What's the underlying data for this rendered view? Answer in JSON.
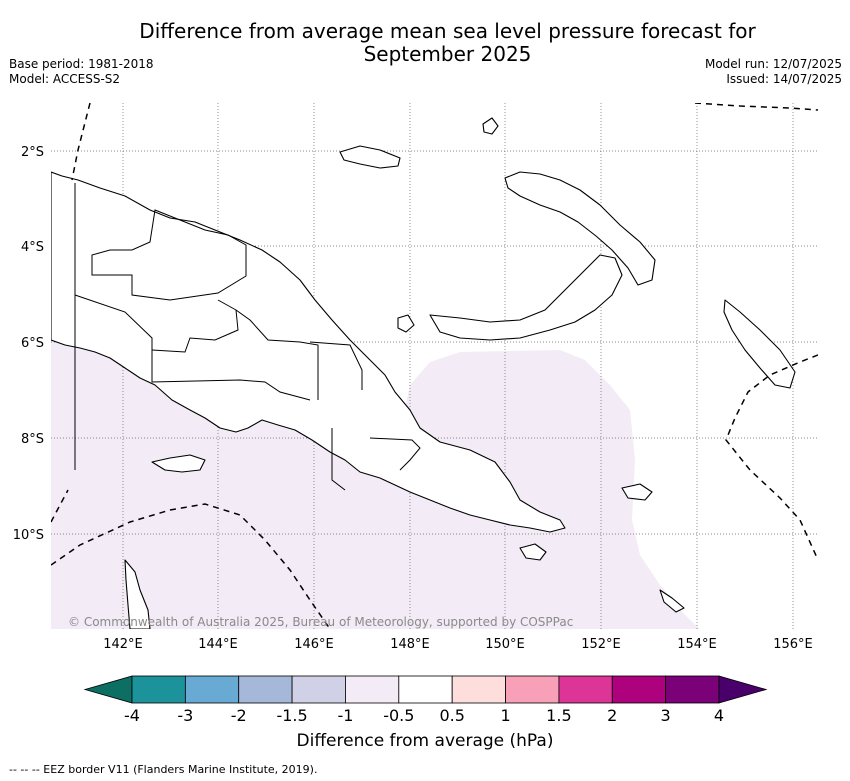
{
  "header": {
    "title_line1": "Difference from average mean sea level pressure forecast for",
    "title_line2": "September 2025",
    "base_period": "Base period: 1981-2018",
    "model": "Model: ACCESS-S2",
    "model_run": "Model run: 12/07/2025",
    "issued": "Issued: 14/07/2025"
  },
  "map": {
    "lon_ticks": [
      "142°E",
      "144°E",
      "146°E",
      "148°E",
      "150°E",
      "152°E",
      "154°E",
      "156°E"
    ],
    "lat_ticks": [
      "2°S",
      "4°S",
      "6°S",
      "8°S",
      "10°S"
    ],
    "copyright": "© Commonwealth of Australia 2025, Bureau of Meteorology, supported by COSPPac",
    "anomaly_class": "-1 to -0.5",
    "anomaly_color": "#f3ebf5"
  },
  "colorbar": {
    "labels": [
      "-4",
      "-3",
      "-2",
      "-1.5",
      "-1",
      "-0.5",
      "0.5",
      "1",
      "1.5",
      "2",
      "3",
      "4"
    ],
    "colors": [
      "#0d6e63",
      "#1c929b",
      "#68aad3",
      "#a6b8da",
      "#d0d0e6",
      "#f3ebf5",
      "#ffffff",
      "#fedddd",
      "#f8a0b8",
      "#dd3497",
      "#ae017e",
      "#7a0177",
      "#49006a"
    ],
    "title": "Difference from average (hPa)"
  },
  "footer": {
    "eez_note": "--  --  -- EEZ border V11 (Flanders Marine Institute, 2019)."
  }
}
